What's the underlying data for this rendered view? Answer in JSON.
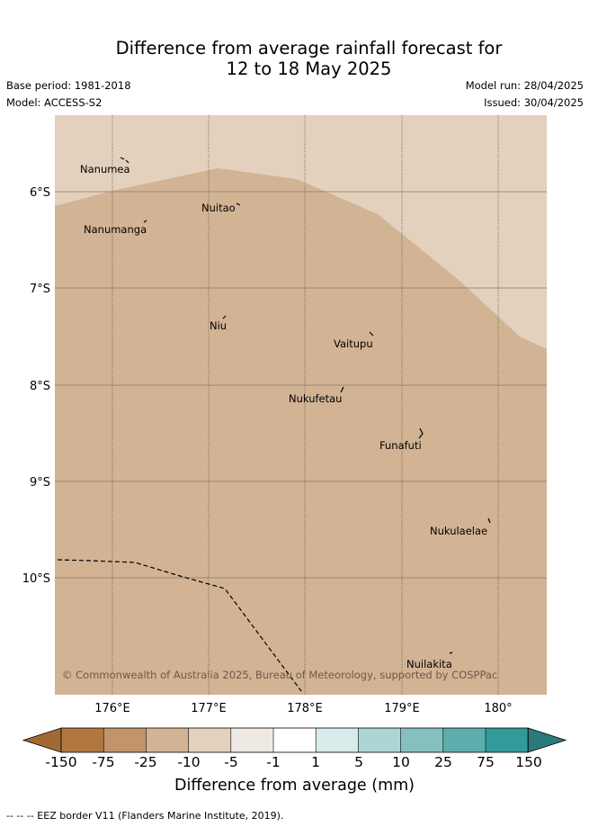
{
  "title": {
    "line1": "Difference from average rainfall forecast for",
    "line2": "12 to 18 May 2025"
  },
  "meta": {
    "base_period": "Base period: 1981-2018",
    "model": "Model: ACCESS-S2",
    "model_run": "Model run: 28/04/2025",
    "issued": "Issued: 30/04/2025"
  },
  "map": {
    "longitude_ticks": [
      "176°E",
      "177°E",
      "178°E",
      "179°E",
      "180°"
    ],
    "latitude_ticks": [
      "6°S",
      "7°S",
      "8°S",
      "9°S",
      "10°S"
    ],
    "islands": [
      "Nanumea",
      "Nuitao",
      "Nanumanga",
      "Niu",
      "Vaitupu",
      "Nukufetau",
      "Funafuti",
      "Nukulaelae",
      "Nuilakita"
    ],
    "copyright": "© Commonwealth of Australia 2025, Bureau of Meteorology, supported by COSPPac",
    "category_colors": {
      "minus_10_to_minus_5": "#e3d0bd",
      "minus_25_to_minus_10": "#d2b394"
    }
  },
  "colorbar": {
    "ticks": [
      "-150",
      "-75",
      "-25",
      "-10",
      "-5",
      "-1",
      "1",
      "5",
      "10",
      "25",
      "75",
      "150"
    ],
    "colors": [
      "#a26a33",
      "#b07840",
      "#c19469",
      "#d2b394",
      "#e3d0bd",
      "#efe9e4",
      "#ffffff",
      "#d6ebea",
      "#acd6d5",
      "#85c0bf",
      "#5eaead",
      "#329b99",
      "#2a7b79"
    ],
    "title": "Difference from average (mm)"
  },
  "footnote": "--  --  -- EEZ border V11 (Flanders Marine Institute, 2019)."
}
